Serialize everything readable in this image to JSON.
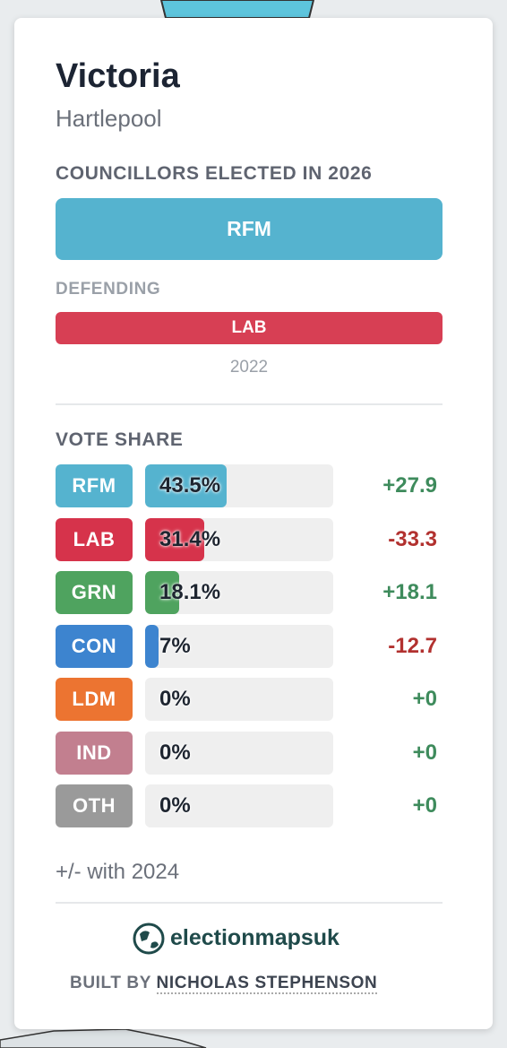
{
  "header": {
    "title": "Victoria",
    "subtitle": "Hartlepool"
  },
  "councillors": {
    "heading": "COUNCILLORS ELECTED IN 2026",
    "winners": [
      {
        "party": "RFM",
        "color": "#55b3cf"
      }
    ]
  },
  "defending": {
    "heading": "DEFENDING",
    "party": "LAB",
    "color": "#d73f54",
    "year": "2022"
  },
  "vote_share": {
    "heading": "VOTE SHARE",
    "rows": [
      {
        "party": "RFM",
        "color": "#55b3cf",
        "value": 43.5,
        "value_label": "43.5%",
        "change": {
          "value": 27.9,
          "label": "+27.9"
        }
      },
      {
        "party": "LAB",
        "color": "#d6334b",
        "value": 31.4,
        "value_label": "31.4%",
        "change": {
          "value": -33.3,
          "label": "-33.3"
        }
      },
      {
        "party": "GRN",
        "color": "#4fa35f",
        "value": 18.1,
        "value_label": "18.1%",
        "change": {
          "value": 18.1,
          "label": "+18.1"
        }
      },
      {
        "party": "CON",
        "color": "#3d84cf",
        "value": 7,
        "value_label": "7%",
        "change": {
          "value": -12.7,
          "label": "-12.7"
        }
      },
      {
        "party": "LDM",
        "color": "#ec7431",
        "value": 0,
        "value_label": "0%",
        "change": {
          "value": 0,
          "label": "+0"
        }
      },
      {
        "party": "IND",
        "color": "#c27f8f",
        "value": 0,
        "value_label": "0%",
        "change": {
          "value": 0,
          "label": "+0"
        }
      },
      {
        "party": "OTH",
        "color": "#9a9a9a",
        "value": 0,
        "value_label": "0%",
        "change": {
          "value": 0,
          "label": "+0"
        }
      }
    ],
    "footnote": "+/- with 2024"
  },
  "footer": {
    "brand": "electionmapsuk",
    "built_by": "BUILT BY",
    "author": "NICHOLAS STEPHENSON"
  }
}
